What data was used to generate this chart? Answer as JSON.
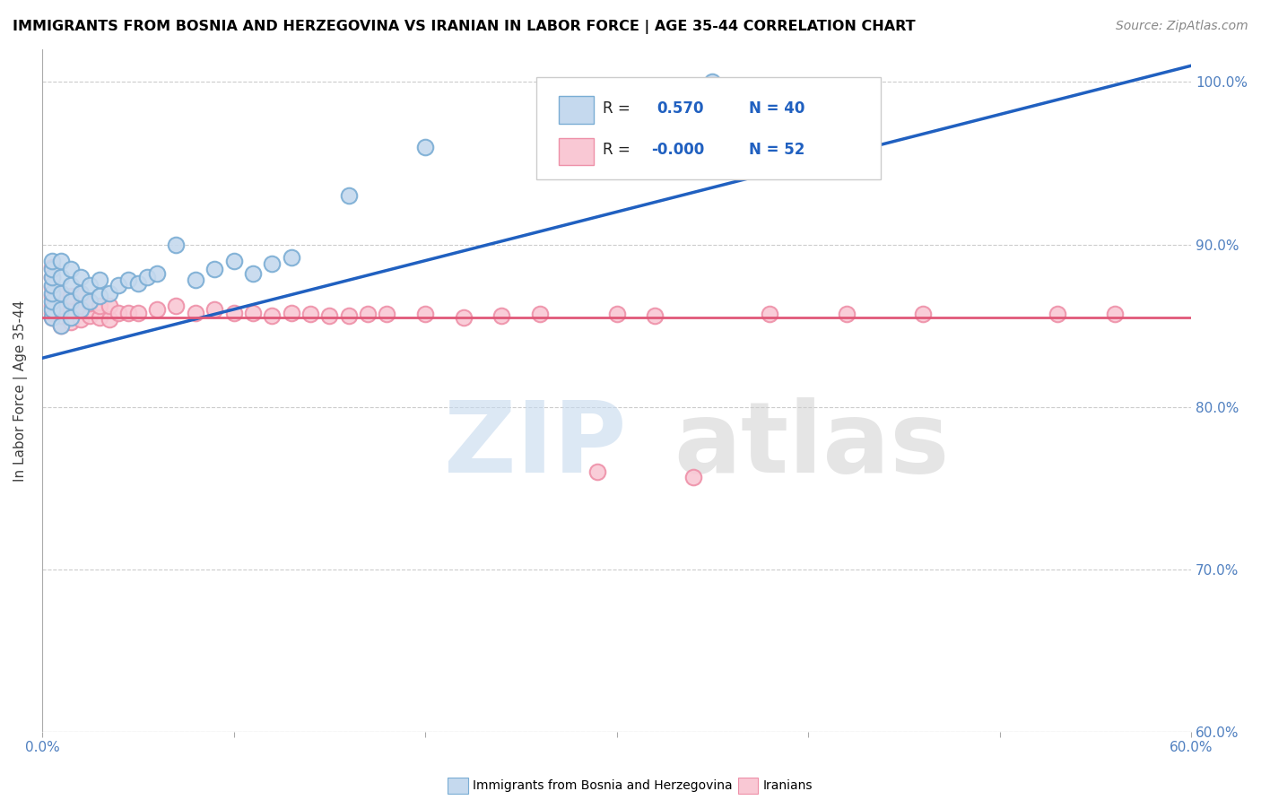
{
  "title": "IMMIGRANTS FROM BOSNIA AND HERZEGOVINA VS IRANIAN IN LABOR FORCE | AGE 35-44 CORRELATION CHART",
  "source": "Source: ZipAtlas.com",
  "ylabel": "In Labor Force | Age 35-44",
  "xlim": [
    0.0,
    0.6
  ],
  "ylim": [
    0.6,
    1.02
  ],
  "xticks": [
    0.0,
    0.1,
    0.2,
    0.3,
    0.4,
    0.5,
    0.6
  ],
  "xtick_labels": [
    "0.0%",
    "",
    "",
    "",
    "",
    "",
    "60.0%"
  ],
  "ytick_labels_right": [
    "60.0%",
    "70.0%",
    "80.0%",
    "90.0%",
    "100.0%"
  ],
  "yticks_right": [
    0.6,
    0.7,
    0.8,
    0.9,
    1.0
  ],
  "blue_fill": "#C5D9EE",
  "blue_edge": "#7AADD4",
  "pink_fill": "#F9C8D4",
  "pink_edge": "#EE90A8",
  "blue_line_color": "#2060C0",
  "pink_line_color": "#E05878",
  "bosnia_x": [
    0.005,
    0.005,
    0.005,
    0.005,
    0.005,
    0.005,
    0.005,
    0.005,
    0.01,
    0.01,
    0.01,
    0.01,
    0.01,
    0.015,
    0.015,
    0.015,
    0.015,
    0.02,
    0.02,
    0.02,
    0.025,
    0.025,
    0.03,
    0.03,
    0.035,
    0.04,
    0.045,
    0.05,
    0.055,
    0.06,
    0.07,
    0.08,
    0.09,
    0.1,
    0.11,
    0.12,
    0.13,
    0.16,
    0.2,
    0.35
  ],
  "bosnia_y": [
    0.855,
    0.86,
    0.865,
    0.87,
    0.875,
    0.88,
    0.885,
    0.89,
    0.85,
    0.86,
    0.87,
    0.88,
    0.89,
    0.855,
    0.865,
    0.875,
    0.885,
    0.86,
    0.87,
    0.88,
    0.865,
    0.875,
    0.868,
    0.878,
    0.87,
    0.875,
    0.878,
    0.876,
    0.88,
    0.882,
    0.9,
    0.878,
    0.885,
    0.89,
    0.882,
    0.888,
    0.892,
    0.93,
    0.96,
    1.0
  ],
  "iran_x": [
    0.005,
    0.005,
    0.005,
    0.005,
    0.005,
    0.005,
    0.005,
    0.01,
    0.01,
    0.01,
    0.01,
    0.015,
    0.015,
    0.015,
    0.02,
    0.02,
    0.02,
    0.025,
    0.025,
    0.03,
    0.03,
    0.035,
    0.035,
    0.04,
    0.045,
    0.05,
    0.06,
    0.07,
    0.08,
    0.09,
    0.1,
    0.11,
    0.12,
    0.13,
    0.14,
    0.15,
    0.16,
    0.17,
    0.18,
    0.2,
    0.22,
    0.24,
    0.26,
    0.29,
    0.3,
    0.32,
    0.34,
    0.38,
    0.42,
    0.46,
    0.53,
    0.56
  ],
  "iran_y": [
    0.855,
    0.858,
    0.862,
    0.868,
    0.874,
    0.88,
    0.886,
    0.85,
    0.856,
    0.862,
    0.87,
    0.852,
    0.86,
    0.868,
    0.854,
    0.862,
    0.87,
    0.856,
    0.864,
    0.855,
    0.862,
    0.854,
    0.862,
    0.858,
    0.858,
    0.858,
    0.86,
    0.862,
    0.858,
    0.86,
    0.858,
    0.858,
    0.856,
    0.858,
    0.857,
    0.856,
    0.856,
    0.857,
    0.857,
    0.857,
    0.855,
    0.856,
    0.857,
    0.76,
    0.857,
    0.856,
    0.757,
    0.857,
    0.857,
    0.857,
    0.857,
    0.857
  ],
  "pink_line_y": 0.855,
  "blue_line_x0": 0.0,
  "blue_line_x1": 0.6,
  "blue_line_y0": 0.83,
  "blue_line_y1": 1.01,
  "watermark_zip_color": "#C5D9EE",
  "watermark_atlas_color": "#CCCCCC"
}
